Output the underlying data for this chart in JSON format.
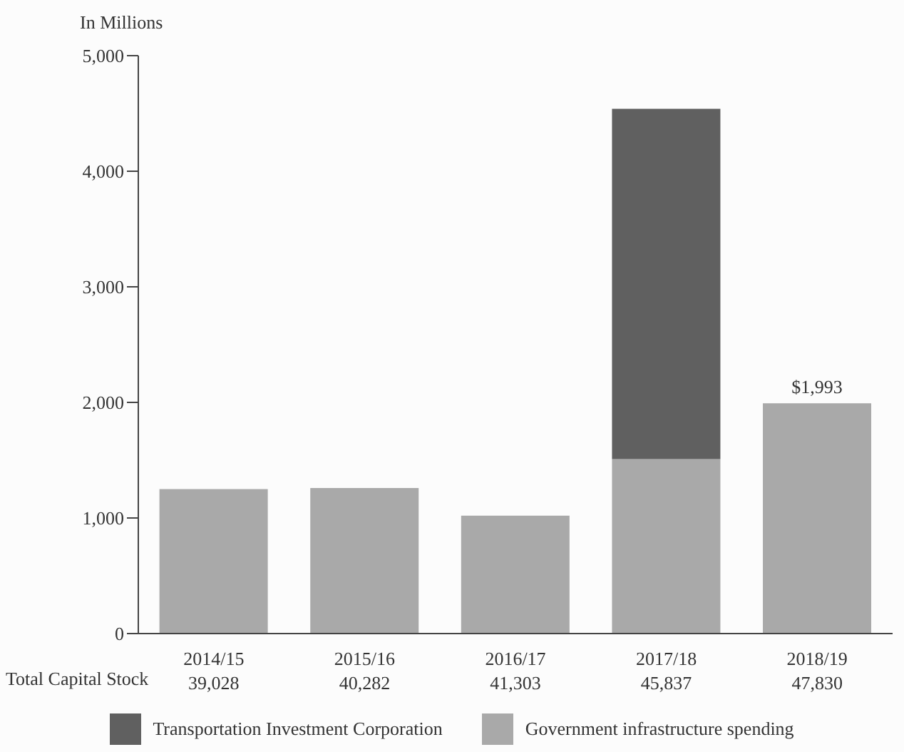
{
  "chart_data": {
    "type": "bar",
    "stacked": true,
    "ylabel": "In Millions",
    "categories": [
      "2014/15",
      "2015/16",
      "2016/17",
      "2017/18",
      "2018/19"
    ],
    "series": [
      {
        "name": "Government infrastructure spending",
        "color": "#a9a9a9",
        "values": [
          1250,
          1260,
          1020,
          1510,
          1993
        ],
        "value_labels": [
          null,
          null,
          null,
          null,
          "$1,993"
        ]
      },
      {
        "name": "Transportation Investment Corporation",
        "color": "#606060",
        "values": [
          null,
          null,
          null,
          3030,
          null
        ]
      }
    ],
    "ylim": [
      0,
      5000
    ],
    "yticks": [
      {
        "value": 0,
        "label": "0"
      },
      {
        "value": 1000,
        "label": "1,000"
      },
      {
        "value": 2000,
        "label": "2,000"
      },
      {
        "value": 3000,
        "label": "3,000"
      },
      {
        "value": 4000,
        "label": "4,000"
      },
      {
        "value": 5000,
        "label": "5,000"
      }
    ],
    "grid": false,
    "legend": "bottom",
    "annotations": [
      "Total Capital Stock",
      "39,028",
      "40,282",
      "41,303",
      "45,837",
      "47,830"
    ]
  }
}
